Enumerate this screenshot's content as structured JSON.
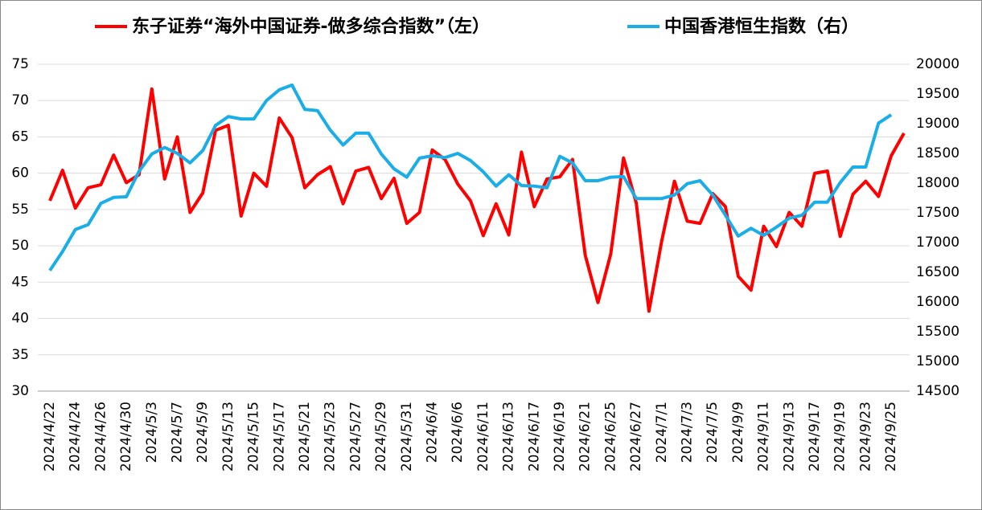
{
  "chart_data": {
    "type": "line",
    "categories": [
      "2024/4/22",
      null,
      "2024/4/24",
      null,
      "2024/4/26",
      null,
      "2024/4/30",
      null,
      "2024/5/3",
      null,
      "2024/5/7",
      null,
      "2024/5/9",
      null,
      "2024/5/13",
      null,
      "2024/5/15",
      null,
      "2024/5/17",
      null,
      "2024/5/21",
      null,
      "2024/5/23",
      null,
      "2024/5/27",
      null,
      "2024/5/29",
      null,
      "2024/5/31",
      null,
      "2024/6/4",
      null,
      "2024/6/6",
      null,
      "2024/6/11",
      null,
      "2024/6/13",
      null,
      "2024/6/17",
      null,
      "2024/6/19",
      null,
      "2024/6/21",
      null,
      "2024/6/25",
      null,
      "2024/6/27",
      null,
      "2024/7/1",
      null,
      "2024/7/3",
      null,
      "2024/7/5",
      null,
      "2024/9/9",
      null,
      "2024/9/11",
      null,
      "2024/9/13",
      null,
      "2024/9/17",
      null,
      "2024/9/19",
      null,
      "2024/9/23",
      null,
      "2024/9/25",
      null
    ],
    "series": [
      {
        "name": "东子证券“海外中国证券-做多综合指数”（左）",
        "color": "#ff0000",
        "values": [
          56.2,
          60.4,
          55.2,
          58.0,
          58.4,
          62.5,
          58.7,
          59.8,
          71.6,
          59.2,
          65.0,
          54.6,
          57.3,
          65.9,
          66.6,
          54.1,
          60.0,
          58.2,
          67.6,
          64.9,
          58.0,
          59.8,
          60.9,
          55.8,
          60.3,
          60.8,
          56.5,
          59.3,
          53.1,
          54.6,
          63.2,
          61.9,
          58.5,
          56.2,
          51.4,
          55.8,
          51.5,
          62.9,
          55.4,
          59.2,
          59.5,
          61.9,
          48.7,
          42.2,
          48.9,
          62.1,
          55.9,
          41.0,
          50.7,
          58.9,
          53.4,
          53.1,
          57.2,
          55.4,
          45.8,
          43.9,
          52.7,
          49.9,
          54.6,
          52.7,
          60.0,
          60.3,
          51.3,
          57.1,
          58.9,
          56.8,
          62.4,
          65.5
        ]
      },
      {
        "name": "中国香港恒生指数（右）",
        "color": "#19aee8",
        "axis": "y2",
        "values": [
          16530,
          16850,
          17220,
          17300,
          17660,
          17760,
          17770,
          18200,
          18490,
          18600,
          18500,
          18340,
          18550,
          18970,
          19120,
          19080,
          19080,
          19390,
          19570,
          19650,
          19240,
          19220,
          18890,
          18640,
          18840,
          18840,
          18490,
          18240,
          18100,
          18420,
          18460,
          18430,
          18500,
          18380,
          18190,
          17950,
          18140,
          17960,
          17950,
          17920,
          18450,
          18340,
          18040,
          18040,
          18100,
          18110,
          17740,
          17740,
          17740,
          17800,
          17990,
          18040,
          17800,
          17460,
          17110,
          17240,
          17120,
          17260,
          17410,
          17460,
          17680,
          17680,
          18010,
          18270,
          18270,
          19010,
          19150,
          null
        ]
      }
    ],
    "ylim": [
      30,
      75
    ],
    "yticks": [
      30,
      35,
      40,
      45,
      50,
      55,
      60,
      65,
      70,
      75
    ],
    "y2lim": [
      14500,
      20000
    ],
    "y2ticks": [
      14500,
      15000,
      15500,
      16000,
      16500,
      17000,
      17500,
      18000,
      18500,
      19000,
      19500,
      20000
    ],
    "grid": true,
    "legend": "top"
  }
}
